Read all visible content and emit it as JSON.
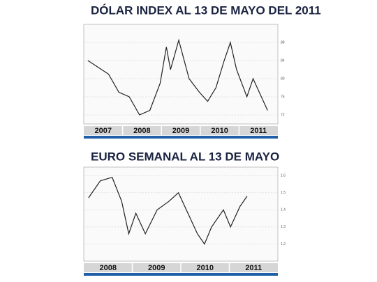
{
  "chart_data": [
    {
      "type": "line",
      "title": "DÓLAR INDEX AL 13 DE MAYO DEL 2011",
      "year_labels": [
        "2007",
        "2008",
        "2009",
        "2010",
        "2011"
      ],
      "x": [
        2007.0,
        2007.25,
        2007.5,
        2007.75,
        2008.0,
        2008.25,
        2008.5,
        2008.75,
        2008.9,
        2009.0,
        2009.2,
        2009.45,
        2009.7,
        2009.9,
        2010.1,
        2010.3,
        2010.45,
        2010.6,
        2010.85,
        2011.0,
        2011.2,
        2011.35
      ],
      "values": [
        84,
        82.5,
        81,
        77,
        76,
        72,
        73,
        79,
        87,
        82,
        88.5,
        80,
        77,
        75,
        78,
        84,
        88,
        82,
        76,
        80,
        76,
        73
      ],
      "xlim": [
        2006.9,
        2011.6
      ],
      "ylim": [
        70,
        92
      ],
      "yticks": [
        72,
        76,
        80,
        84,
        88
      ],
      "color": "#222222"
    },
    {
      "type": "line",
      "title": "EURO SEMANAL AL 13 DE MAYO",
      "year_labels": [
        "2008",
        "2009",
        "2010",
        "2011"
      ],
      "x": [
        2008.0,
        2008.25,
        2008.5,
        2008.7,
        2008.85,
        2009.0,
        2009.2,
        2009.45,
        2009.7,
        2009.9,
        2010.1,
        2010.3,
        2010.45,
        2010.6,
        2010.85,
        2011.0,
        2011.2,
        2011.35
      ],
      "values": [
        1.47,
        1.57,
        1.59,
        1.45,
        1.26,
        1.38,
        1.26,
        1.4,
        1.45,
        1.5,
        1.38,
        1.26,
        1.2,
        1.3,
        1.4,
        1.3,
        1.42,
        1.48
      ],
      "xlim": [
        2007.9,
        2012.0
      ],
      "ylim": [
        1.1,
        1.65
      ],
      "yticks": [
        1.2,
        1.3,
        1.4,
        1.5,
        1.6
      ],
      "color": "#222222"
    }
  ]
}
